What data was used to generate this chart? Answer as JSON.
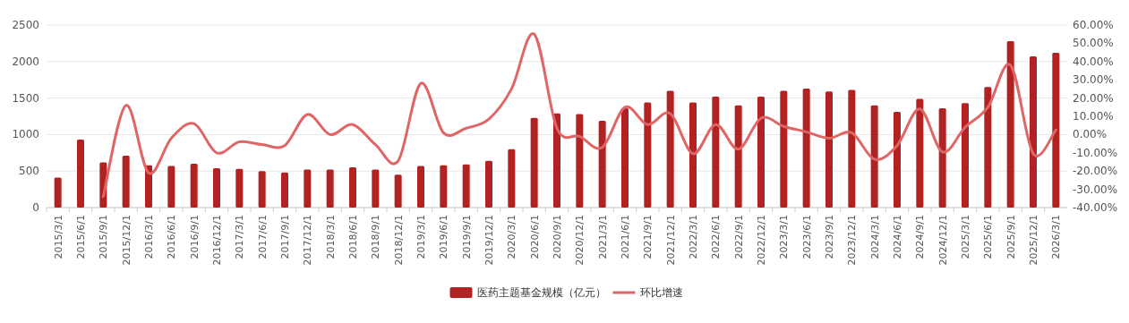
{
  "chart_data": {
    "type": "bar",
    "categories": [
      "2015/3/1",
      "2015/6/1",
      "2015/9/1",
      "2015/12/1",
      "2016/3/1",
      "2016/6/1",
      "2016/9/1",
      "2016/12/1",
      "2017/3/1",
      "2017/6/1",
      "2017/9/1",
      "2017/12/1",
      "2018/3/1",
      "2018/6/1",
      "2018/9/1",
      "2018/12/1",
      "2019/3/1",
      "2019/6/1",
      "2019/9/1",
      "2019/12/1",
      "2020/3/1",
      "2020/6/1",
      "2020/9/1",
      "2020/12/1",
      "2021/3/1",
      "2021/6/1",
      "2021/9/1",
      "2021/12/1",
      "2022/3/1",
      "2022/6/1",
      "2022/9/1",
      "2022/12/1",
      "2023/3/1",
      "2023/6/1",
      "2023/9/1",
      "2023/12/1",
      "2024/3/1",
      "2024/6/1",
      "2024/9/1",
      "2024/12/1",
      "2025/3/1",
      "2025/6/1",
      "2025/9/1",
      "2025/12/1",
      "2026/3/1"
    ],
    "series": [
      {
        "name": "医药主题基金规模（亿元）",
        "color": "#b22222",
        "values": [
          410,
          930,
          620,
          710,
          580,
          570,
          600,
          540,
          530,
          500,
          480,
          520,
          520,
          550,
          520,
          450,
          570,
          580,
          590,
          640,
          800,
          1230,
          1290,
          1280,
          1190,
          1360,
          1440,
          1600,
          1440,
          1520,
          1400,
          1520,
          1600,
          1630,
          1590,
          1610,
          1400,
          1310,
          1490,
          1360,
          1430,
          1650,
          2280,
          2070,
          2120
        ]
      },
      {
        "name": "环比增速",
        "type": "line",
        "axis": "y2",
        "color": "#e06666",
        "values": [
          null,
          null,
          -34,
          16,
          -21,
          -2,
          6,
          -10,
          -4,
          -5.5,
          -6,
          11,
          0,
          5.5,
          -5.5,
          -14.5,
          28,
          1,
          3.5,
          8.5,
          25,
          55,
          3.5,
          -1,
          -7,
          15,
          5.5,
          11.5,
          -10.5,
          5.5,
          -8,
          9,
          4.5,
          1.5,
          -2,
          1,
          -13.5,
          -6,
          14,
          -9.5,
          4,
          15,
          38,
          -10.5,
          2.5
        ]
      }
    ],
    "ylim": [
      0,
      2500
    ],
    "yticks": [
      0,
      500,
      1000,
      1500,
      2000,
      2500
    ],
    "y2lim": [
      -40,
      60
    ],
    "y2ticks": [
      {
        "value": -40,
        "label": "-40.00%"
      },
      {
        "value": -30,
        "label": "-30.00%"
      },
      {
        "value": -20,
        "label": "-20.00%"
      },
      {
        "value": -10,
        "label": "-10.00%"
      },
      {
        "value": 0,
        "label": "0.00%"
      },
      {
        "value": 10,
        "label": "10.00%"
      },
      {
        "value": 20,
        "label": "20.00%"
      },
      {
        "value": 30,
        "label": "30.00%"
      },
      {
        "value": 40,
        "label": "40.00%"
      },
      {
        "value": 50,
        "label": "50.00%"
      },
      {
        "value": 60,
        "label": "60.00%"
      }
    ],
    "grid": "y",
    "legend": "bottom",
    "line_style": "solid"
  }
}
